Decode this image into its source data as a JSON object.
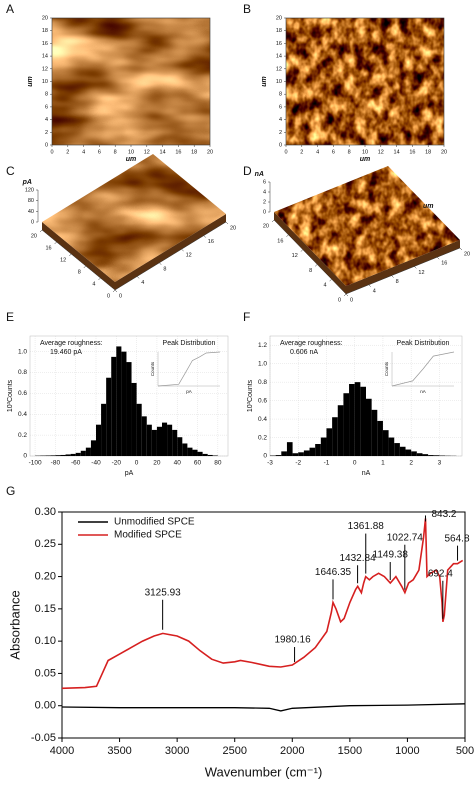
{
  "chart_data": [
    {
      "type": "image",
      "label": "A",
      "texture": "topography",
      "xlim": [
        0,
        20
      ],
      "ylim": [
        0,
        20
      ],
      "xticks": [
        0,
        2,
        4,
        6,
        8,
        10,
        12,
        14,
        16,
        18,
        20
      ],
      "yticks": [
        0,
        2,
        4,
        6,
        8,
        10,
        12,
        14,
        16,
        18,
        20
      ],
      "xlabel": "um",
      "ylabel": "um"
    },
    {
      "type": "image",
      "label": "B",
      "texture": "amplitude",
      "xlim": [
        0,
        20
      ],
      "ylim": [
        0,
        20
      ],
      "xticks": [
        0,
        2,
        4,
        6,
        8,
        10,
        12,
        14,
        16,
        18,
        20
      ],
      "yticks": [
        0,
        2,
        4,
        6,
        8,
        10,
        12,
        14,
        16,
        18,
        20
      ],
      "xlabel": "um",
      "ylabel": "um"
    },
    {
      "type": "surface",
      "label": "C",
      "texture": "topography",
      "xlim": [
        0,
        20
      ],
      "ylim": [
        0,
        20
      ],
      "zlim": [
        0,
        120
      ],
      "xticks": [
        0,
        4,
        8,
        12,
        16,
        20
      ],
      "yticks": [
        0,
        4,
        8,
        12,
        16,
        20
      ],
      "zticks": [
        0,
        40,
        80,
        120
      ],
      "zlabel": "pA"
    },
    {
      "type": "surface",
      "label": "D",
      "texture": "amplitude",
      "xlim": [
        0,
        20
      ],
      "ylim": [
        0,
        20
      ],
      "zlim": [
        0,
        6
      ],
      "xticks": [
        0,
        4,
        8,
        12,
        16,
        20
      ],
      "yticks": [
        0,
        4,
        8,
        12,
        16,
        20
      ],
      "zticks": [
        0,
        2,
        4,
        6
      ],
      "zlabel": "nA",
      "xlabel": "um"
    },
    {
      "type": "histogram",
      "label": "E",
      "color": "#000000",
      "xlabel": "pA",
      "ylabel": "10³Counts",
      "grid": true,
      "bins": [
        -100,
        -95,
        -90,
        -85,
        -80,
        -75,
        -70,
        -65,
        -60,
        -55,
        -50,
        -45,
        -40,
        -35,
        -30,
        -25,
        -20,
        -15,
        -10,
        -5,
        0,
        5,
        10,
        15,
        20,
        25,
        30,
        35,
        40,
        45,
        50,
        55,
        60,
        65,
        70,
        75,
        80
      ],
      "values": [
        0.003,
        0.004,
        0.005,
        0.006,
        0.008,
        0.01,
        0.015,
        0.02,
        0.03,
        0.05,
        0.08,
        0.15,
        0.3,
        0.5,
        0.75,
        0.95,
        1.05,
        1.0,
        0.9,
        0.7,
        0.5,
        0.38,
        0.3,
        0.25,
        0.28,
        0.32,
        0.3,
        0.25,
        0.18,
        0.12,
        0.08,
        0.06,
        0.04,
        0.02,
        0.01,
        0.005
      ],
      "xlim": [
        -105,
        90
      ],
      "ylim": [
        0,
        1.15
      ],
      "xticks": [
        -100,
        -80,
        -60,
        -40,
        -20,
        0,
        20,
        40,
        60,
        80
      ],
      "yticks": [
        0,
        0.2,
        0.4,
        0.6,
        0.8,
        {
          "value": 1,
          "label": "1.0"
        }
      ],
      "roughness_title": "Average roughness:",
      "roughness": "19.460 pA",
      "inset": {
        "title": "Peak Distribution",
        "xlabel": "pA",
        "ylabel": "Counts",
        "x": [
          -100,
          -40,
          -20,
          0,
          20,
          40,
          80
        ],
        "values": [
          0,
          0.05,
          0.4,
          0.75,
          0.85,
          0.97,
          1
        ],
        "xlim": [
          -100,
          80
        ],
        "ylim": [
          0,
          1
        ]
      }
    },
    {
      "type": "histogram",
      "label": "F",
      "color": "#000000",
      "xlabel": "nA",
      "ylabel": "10³Counts",
      "grid": true,
      "bins": [
        -3,
        -2.8,
        -2.6,
        -2.4,
        -2.2,
        -2,
        -1.8,
        -1.6,
        -1.4,
        -1.2,
        -1,
        -0.8,
        -0.6,
        -0.4,
        -0.2,
        0,
        0.2,
        0.4,
        0.6,
        0.8,
        1,
        1.2,
        1.4,
        1.6,
        1.8,
        2,
        2.2,
        2.4,
        2.6,
        2.8,
        3,
        3.2,
        3.4,
        3.6
      ],
      "values": [
        0.005,
        0.01,
        0.05,
        0.15,
        0.03,
        0.04,
        0.06,
        0.09,
        0.13,
        0.2,
        0.3,
        0.42,
        0.55,
        0.68,
        0.78,
        0.8,
        0.75,
        0.62,
        0.5,
        0.38,
        0.28,
        0.2,
        0.14,
        0.1,
        0.07,
        0.05,
        0.03,
        0.02,
        0.01,
        0.008,
        0.005,
        0.003,
        0.002
      ],
      "xlim": [
        -3,
        3.8
      ],
      "ylim": [
        0,
        1.3
      ],
      "xticks": [
        -3,
        -2,
        -1,
        0,
        1,
        2,
        3
      ],
      "yticks": [
        0,
        0.2,
        0.4,
        0.6,
        0.8,
        {
          "value": 1,
          "label": "1.0"
        },
        1.2
      ],
      "roughness_title": "Average roughness:",
      "roughness": "0.606 nA",
      "inset": {
        "title": "Peak Distribution",
        "xlabel": "nA",
        "ylabel": "Counts",
        "x": [
          -3,
          -1,
          0,
          1,
          3
        ],
        "values": [
          0,
          0.15,
          0.5,
          0.88,
          1
        ],
        "xlim": [
          -3,
          3
        ],
        "ylim": [
          0,
          1
        ]
      }
    },
    {
      "type": "line",
      "label": "G",
      "xlabel": "Wavenumber (cm⁻¹)",
      "ylabel": "Absorbance",
      "legend": "upper left",
      "xlim": [
        4000,
        500
      ],
      "ylim": [
        -0.05,
        0.3
      ],
      "xticks": [
        4000,
        3500,
        3000,
        2500,
        2000,
        1500,
        1000,
        500
      ],
      "yticks": [
        {
          "value": -0.05,
          "label": "-0.05"
        },
        {
          "value": 0,
          "label": "0.00"
        },
        {
          "value": 0.05,
          "label": "0.05"
        },
        {
          "value": 0.1,
          "label": "0.10"
        },
        {
          "value": 0.15,
          "label": "0.15"
        },
        {
          "value": 0.2,
          "label": "0.20"
        },
        {
          "value": 0.25,
          "label": "0.25"
        },
        {
          "value": 0.3,
          "label": "0.30"
        }
      ],
      "series": [
        {
          "name": "Unmodified SPCE",
          "color": "#000000",
          "x": [
            4000,
            3500,
            3000,
            2500,
            2200,
            2100,
            2000,
            1500,
            1000,
            500
          ],
          "values": [
            -0.002,
            -0.003,
            -0.003,
            -0.003,
            -0.004,
            -0.008,
            -0.004,
            0.0,
            0.001,
            0.003
          ]
        },
        {
          "name": "Modified SPCE",
          "color": "#d62020",
          "x": [
            4000,
            3800,
            3700,
            3650,
            3600,
            3500,
            3400,
            3300,
            3200,
            3125,
            3000,
            2900,
            2800,
            2700,
            2600,
            2500,
            2450,
            2350,
            2200,
            2100,
            2000,
            1900,
            1800,
            1700,
            1660,
            1646,
            1620,
            1580,
            1550,
            1500,
            1450,
            1432,
            1400,
            1380,
            1362,
            1330,
            1300,
            1250,
            1200,
            1149,
            1100,
            1050,
            1022,
            990,
            950,
            900,
            860,
            843,
            830,
            800,
            750,
            720,
            700,
            692,
            680,
            650,
            600,
            565,
            520
          ],
          "values": [
            0.027,
            0.028,
            0.03,
            0.05,
            0.07,
            0.08,
            0.09,
            0.1,
            0.108,
            0.112,
            0.108,
            0.1,
            0.085,
            0.072,
            0.066,
            0.068,
            0.07,
            0.067,
            0.061,
            0.06,
            0.063,
            0.075,
            0.09,
            0.115,
            0.145,
            0.16,
            0.15,
            0.13,
            0.135,
            0.16,
            0.18,
            0.185,
            0.175,
            0.19,
            0.2,
            0.195,
            0.2,
            0.205,
            0.2,
            0.19,
            0.2,
            0.185,
            0.175,
            0.19,
            0.195,
            0.21,
            0.26,
            0.29,
            0.2,
            0.205,
            0.21,
            0.2,
            0.16,
            0.13,
            0.14,
            0.21,
            0.22,
            0.22,
            0.225
          ]
        }
      ],
      "annotations": [
        {
          "x": 3125.93,
          "y": 0.113
        },
        {
          "x": 1980.16,
          "y": 0.063
        },
        {
          "x": 1646.35,
          "y": 0.16
        },
        {
          "x": 1432.84,
          "y": 0.185
        },
        {
          "x": 1361.88,
          "y": 0.2
        },
        {
          "x": 1149.38,
          "y": 0.19
        },
        {
          "x": 1022.74,
          "y": 0.175
        },
        {
          "x": 843.2,
          "y": 0.29
        },
        {
          "x": 564.8,
          "y": 0.22
        },
        {
          "x": 692.4,
          "y": 0.13
        }
      ]
    }
  ]
}
